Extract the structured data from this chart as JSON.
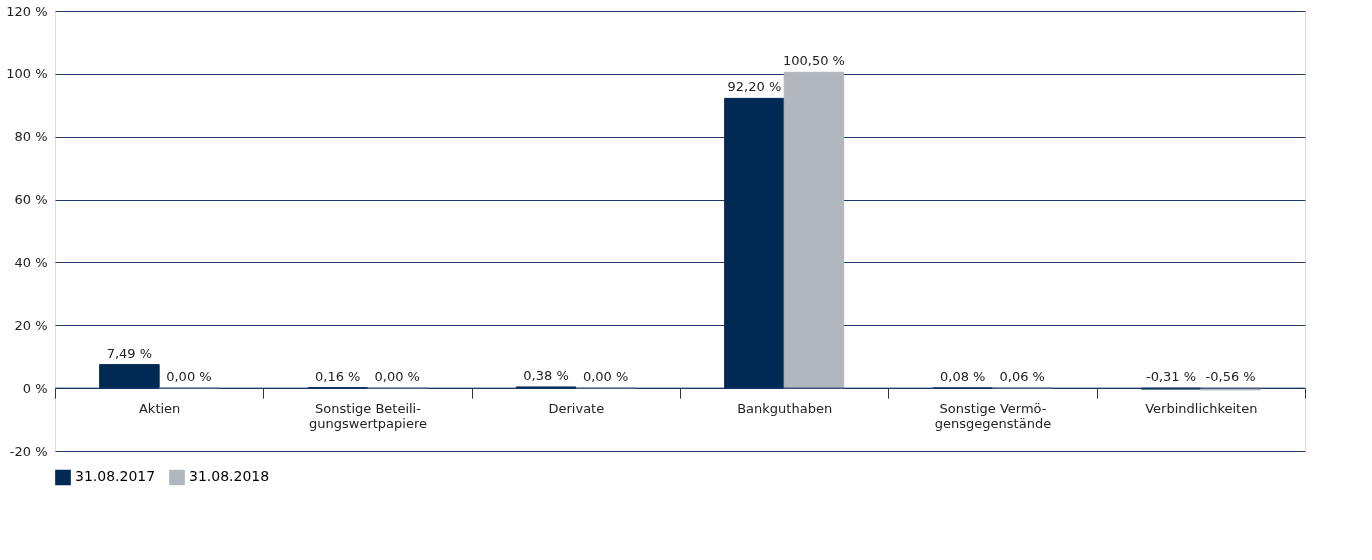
{
  "chart_data": {
    "type": "bar",
    "categories": [
      "Aktien",
      "Sonstige Beteili-\ngungswertpapiere",
      "Derivate",
      "Bankguthaben",
      "Sonstige Vermö-\ngensgegenstände",
      "Verbindlichkeiten"
    ],
    "series": [
      {
        "name": "31.08.2017",
        "color": "#002a54",
        "values": [
          7.49,
          0.16,
          0.38,
          92.2,
          0.08,
          -0.31
        ],
        "value_labels": [
          "7,49 %",
          "0,16 %",
          "0,38 %",
          "92,20 %",
          "0,08 %",
          "-0,31 %"
        ]
      },
      {
        "name": "31.08.2018",
        "color": "#b1b7bd",
        "values": [
          0.0,
          0.0,
          0.0,
          100.5,
          0.06,
          -0.56
        ],
        "value_labels": [
          "0,00 %",
          "0,00 %",
          "0,00 %",
          "100,50 %",
          "0,06 %",
          "-0,56 %"
        ]
      }
    ],
    "ylim": [
      -20,
      120
    ],
    "yticks": [
      {
        "value": -20,
        "label": "-20 %"
      },
      {
        "value": 0,
        "label": "0 %"
      },
      {
        "value": 20,
        "label": "20 %"
      },
      {
        "value": 40,
        "label": "40 %"
      },
      {
        "value": 60,
        "label": "60 %"
      },
      {
        "value": 80,
        "label": "80 %"
      },
      {
        "value": 100,
        "label": "100 %"
      },
      {
        "value": 120,
        "label": "120 %"
      }
    ],
    "grid": "y",
    "legend": "bottom"
  }
}
